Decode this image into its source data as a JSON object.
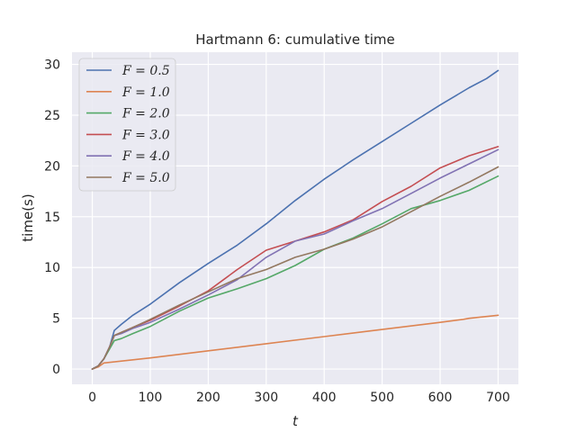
{
  "chart_data": {
    "type": "line",
    "title": "Hartmann 6: cumulative time",
    "xlabel": "t",
    "ylabel": "time(s)",
    "xlim": [
      -35,
      735
    ],
    "ylim": [
      -1.5,
      31.2
    ],
    "xticks": [
      0,
      100,
      200,
      300,
      400,
      500,
      600,
      700
    ],
    "yticks": [
      0,
      5,
      10,
      15,
      20,
      25,
      30
    ],
    "grid": true,
    "legend_position": "top-left",
    "series": [
      {
        "name": "F = 0.5",
        "color": "#4c72b0",
        "x": [
          0,
          10,
          20,
          30,
          38,
          50,
          70,
          100,
          150,
          200,
          250,
          300,
          350,
          400,
          450,
          500,
          550,
          600,
          650,
          680,
          700
        ],
        "values": [
          0,
          0.3,
          1.0,
          2.2,
          3.8,
          4.4,
          5.3,
          6.4,
          8.5,
          10.4,
          12.2,
          14.3,
          16.6,
          18.7,
          20.6,
          22.4,
          24.2,
          26.0,
          27.7,
          28.6,
          29.4
        ]
      },
      {
        "name": "F = 1.0",
        "color": "#dd8452",
        "x": [
          0,
          10,
          20,
          100,
          200,
          300,
          400,
          500,
          600,
          640,
          650,
          700
        ],
        "values": [
          0,
          0.2,
          0.6,
          1.1,
          1.8,
          2.5,
          3.2,
          3.9,
          4.6,
          4.9,
          5.0,
          5.3
        ]
      },
      {
        "name": "F = 2.0",
        "color": "#55a868",
        "x": [
          0,
          10,
          20,
          30,
          38,
          50,
          70,
          100,
          150,
          200,
          250,
          300,
          350,
          400,
          450,
          500,
          550,
          600,
          650,
          700
        ],
        "values": [
          0,
          0.3,
          1.0,
          2.0,
          2.8,
          3.0,
          3.5,
          4.2,
          5.7,
          7.0,
          7.9,
          8.9,
          10.2,
          11.8,
          12.9,
          14.3,
          15.8,
          16.6,
          17.6,
          19.0
        ]
      },
      {
        "name": "F = 3.0",
        "color": "#c44e52",
        "x": [
          0,
          10,
          20,
          30,
          38,
          50,
          70,
          100,
          150,
          200,
          250,
          300,
          350,
          400,
          450,
          500,
          550,
          600,
          650,
          700
        ],
        "values": [
          0,
          0.3,
          1.0,
          2.2,
          3.3,
          3.6,
          4.1,
          4.8,
          6.2,
          7.7,
          9.8,
          11.7,
          12.6,
          13.5,
          14.7,
          16.5,
          18.0,
          19.8,
          21.0,
          21.9
        ]
      },
      {
        "name": "F = 4.0",
        "color": "#8172b3",
        "x": [
          0,
          10,
          20,
          30,
          38,
          50,
          70,
          100,
          150,
          200,
          250,
          300,
          350,
          400,
          450,
          500,
          550,
          600,
          650,
          700
        ],
        "values": [
          0,
          0.3,
          1.0,
          2.2,
          3.3,
          3.5,
          4.0,
          4.6,
          5.9,
          7.3,
          8.8,
          11.0,
          12.6,
          13.3,
          14.6,
          15.8,
          17.3,
          18.8,
          20.2,
          21.6
        ]
      },
      {
        "name": "F = 5.0",
        "color": "#937860",
        "x": [
          0,
          10,
          20,
          30,
          38,
          50,
          70,
          100,
          150,
          200,
          250,
          300,
          350,
          400,
          450,
          500,
          550,
          600,
          650,
          700
        ],
        "values": [
          0,
          0.3,
          1.0,
          2.2,
          3.3,
          3.6,
          4.1,
          4.9,
          6.3,
          7.6,
          8.9,
          9.8,
          11.0,
          11.8,
          12.8,
          14.0,
          15.5,
          17.0,
          18.4,
          19.9
        ]
      }
    ]
  }
}
